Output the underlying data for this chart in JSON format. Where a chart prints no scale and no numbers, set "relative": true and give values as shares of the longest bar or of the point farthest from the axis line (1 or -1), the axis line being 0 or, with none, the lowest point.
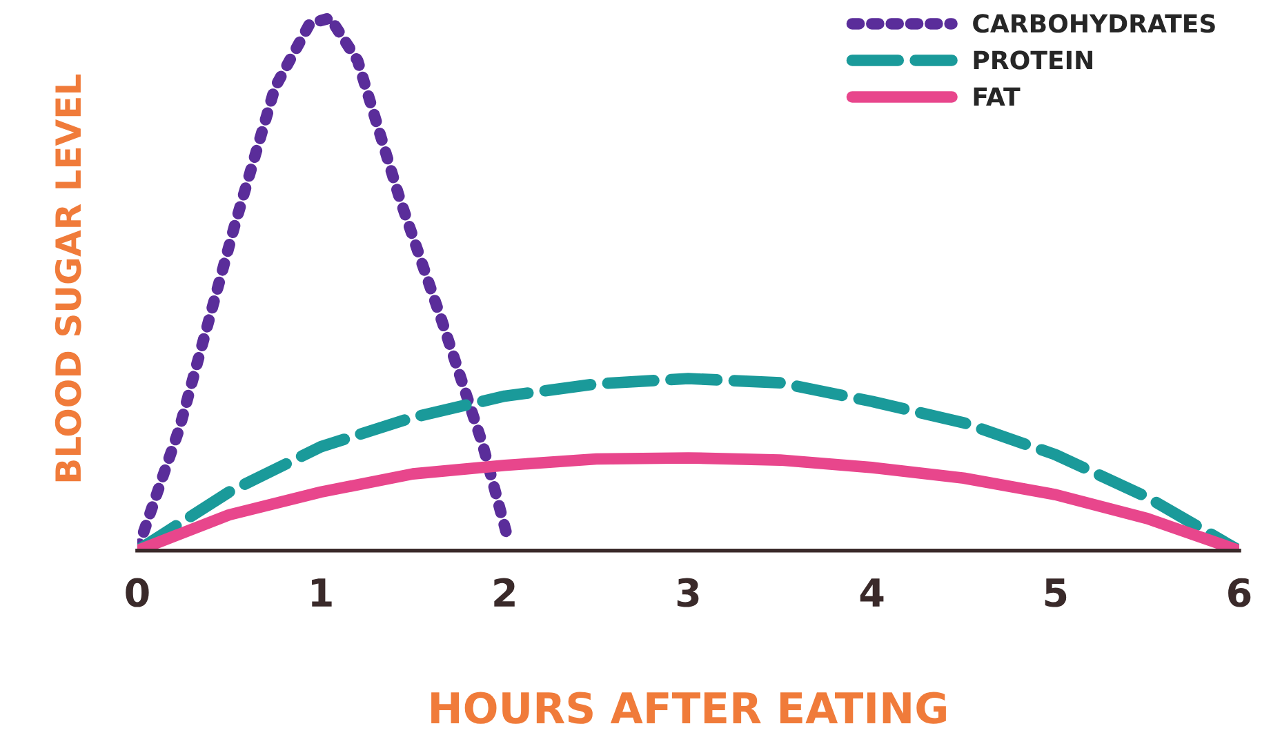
{
  "chart_data": {
    "type": "line",
    "xlabel": "HOURS AFTER EATING",
    "ylabel": "BLOOD SUGAR LEVEL",
    "relative": true,
    "xlim": [
      0,
      6
    ],
    "xticks": [
      0,
      1,
      2,
      3,
      4,
      5,
      6
    ],
    "legend": "top right",
    "grid": false,
    "series": [
      {
        "name": "CARBOHYDRATES",
        "color": "#5a2d9a",
        "line_style": "dotted",
        "x": [
          0,
          0.23,
          0.53,
          0.75,
          0.94,
          1.05,
          1.2,
          1.43,
          1.66,
          1.88,
          2.02
        ],
        "values": [
          0,
          0.23,
          0.61,
          0.87,
          0.99,
          1,
          0.92,
          0.66,
          0.43,
          0.2,
          0.02
        ]
      },
      {
        "name": "PROTEIN",
        "color": "#1a9a9a",
        "line_style": "dashed",
        "x": [
          0,
          0.5,
          1,
          1.5,
          2,
          2.5,
          3,
          3.5,
          4,
          4.5,
          5,
          5.5,
          6
        ],
        "values": [
          0,
          0.11,
          0.195,
          0.25,
          0.29,
          0.313,
          0.323,
          0.315,
          0.28,
          0.24,
          0.18,
          0.1,
          0
        ]
      },
      {
        "name": "FAT",
        "color": "#e8468c",
        "line_style": "solid",
        "x": [
          0,
          0.5,
          1,
          1.5,
          2,
          2.5,
          3,
          3.5,
          4,
          4.5,
          5,
          5.5,
          6
        ],
        "values": [
          0,
          0.067,
          0.11,
          0.144,
          0.16,
          0.172,
          0.174,
          0.17,
          0.156,
          0.136,
          0.105,
          0.06,
          0
        ]
      }
    ]
  }
}
